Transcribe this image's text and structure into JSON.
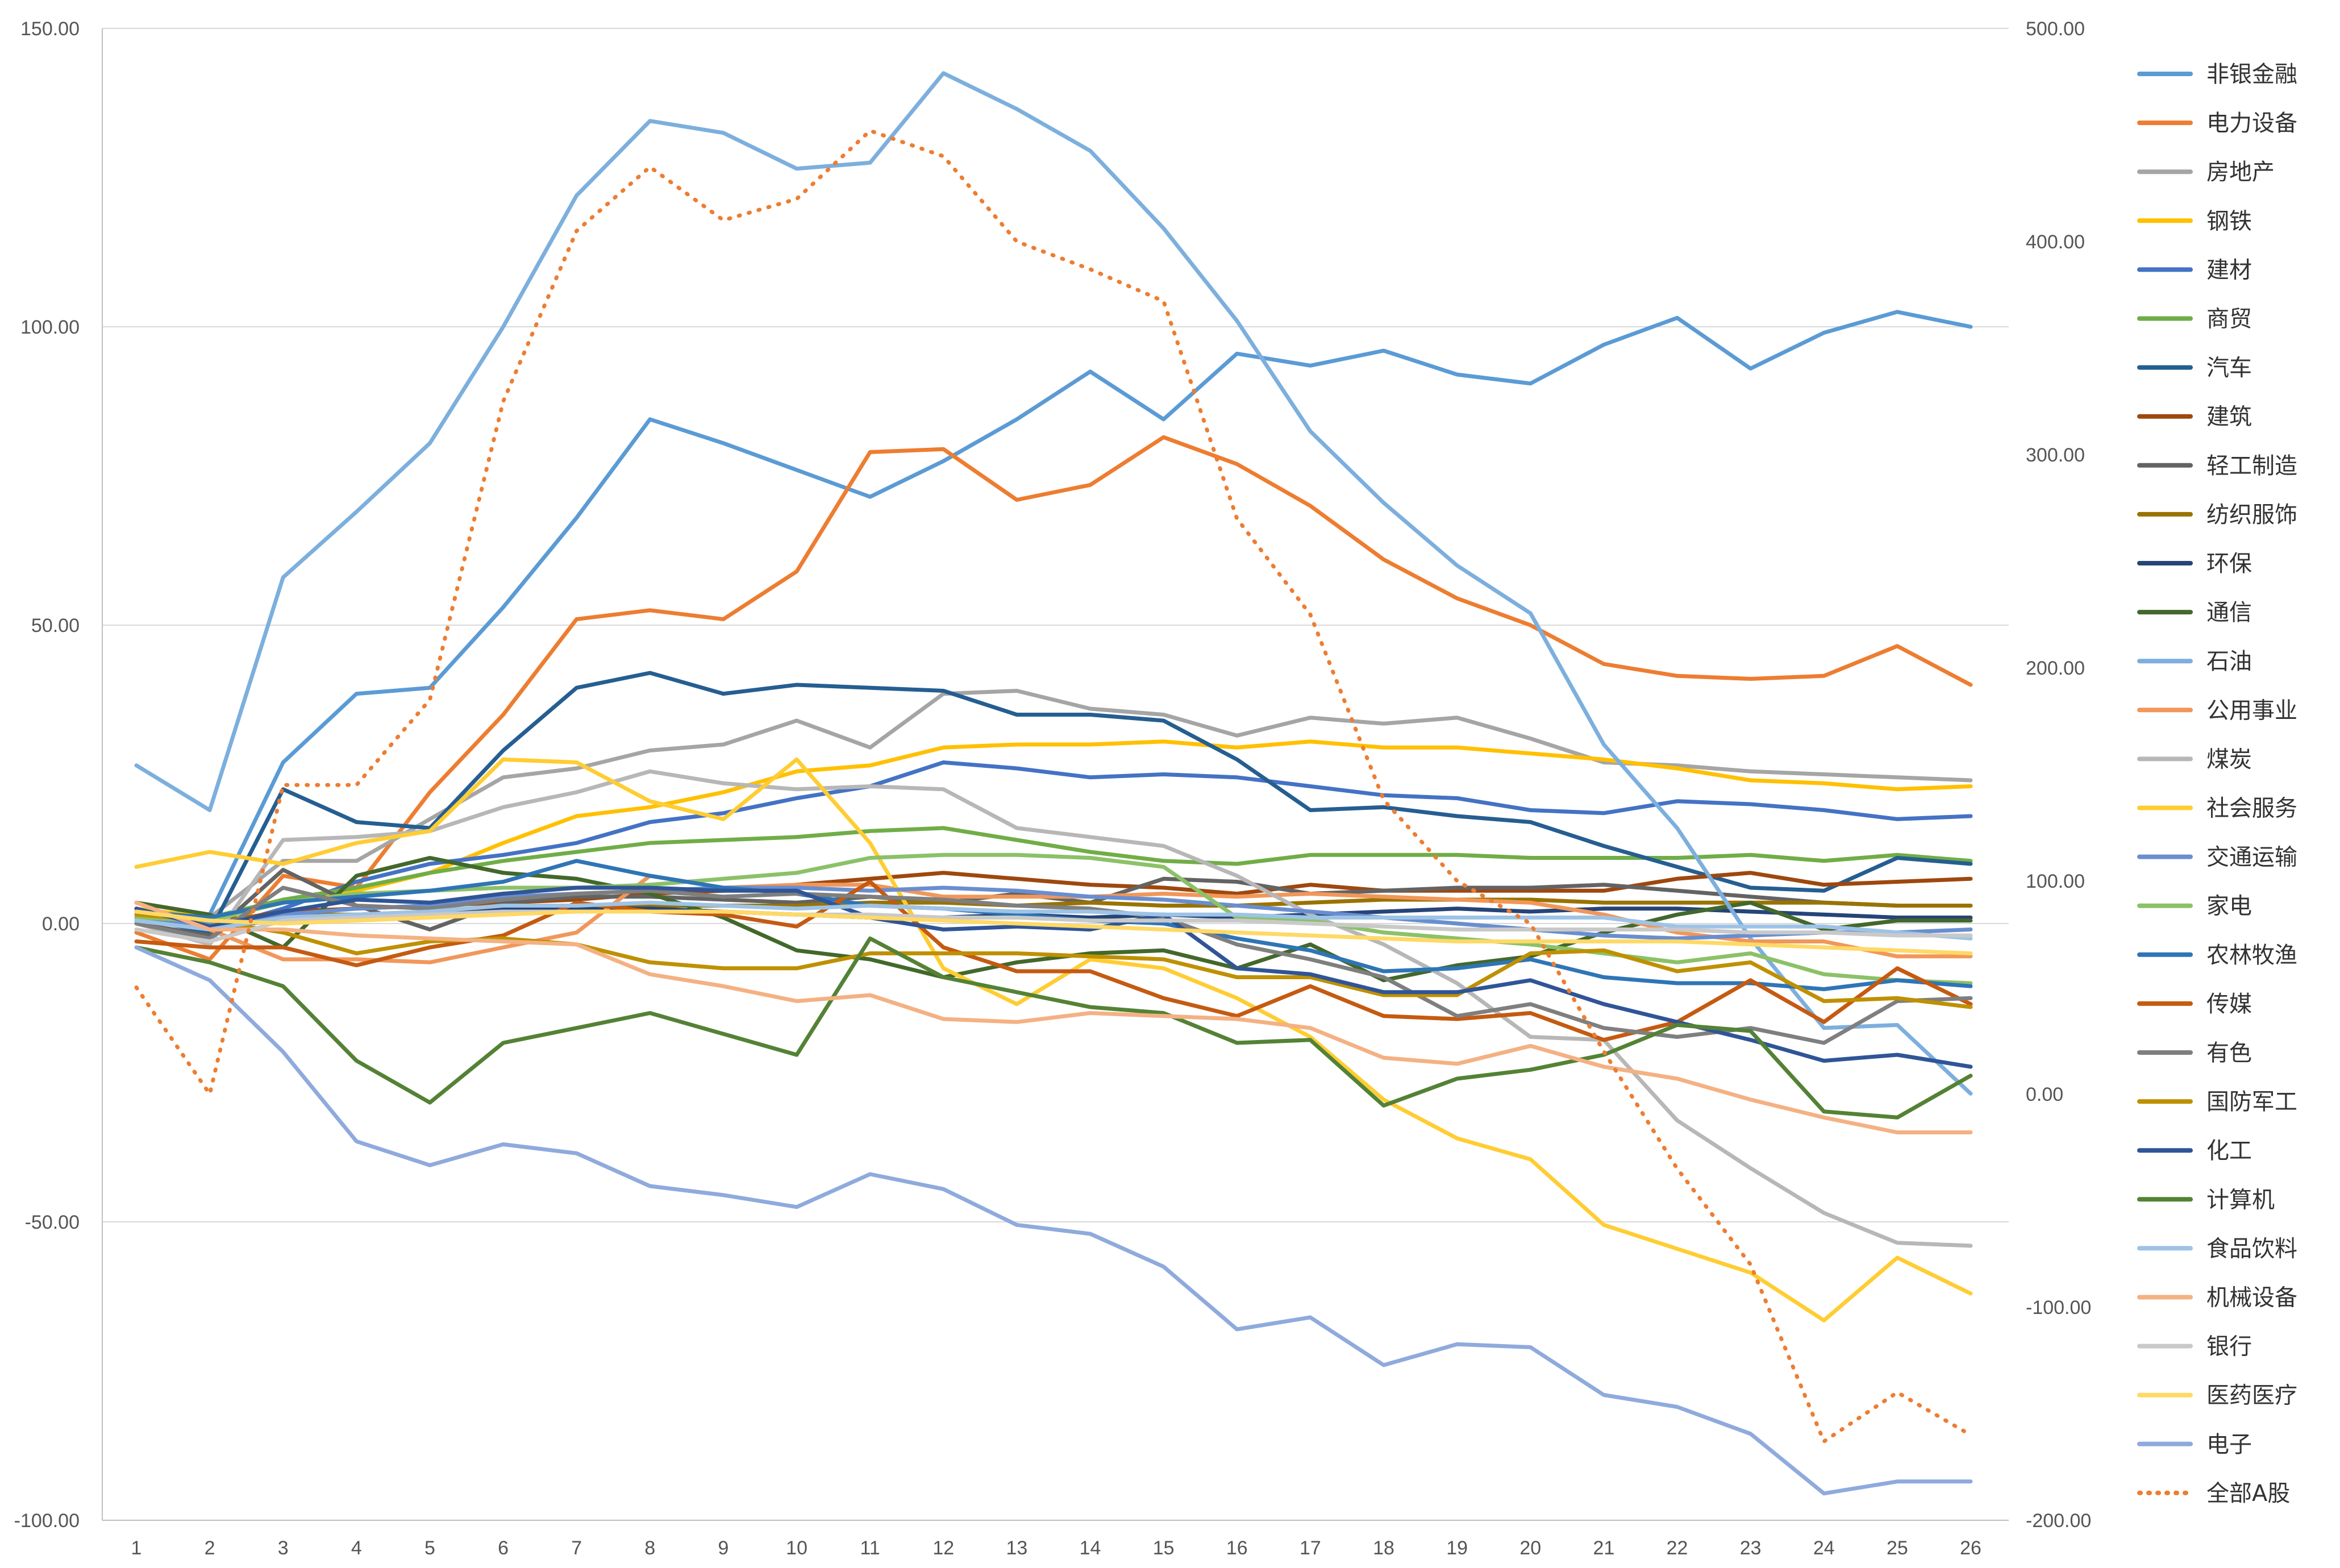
{
  "chart_data": {
    "type": "line",
    "title": "",
    "xlabel": "",
    "ylabel": "",
    "categories": [
      "1",
      "2",
      "3",
      "4",
      "5",
      "6",
      "7",
      "8",
      "9",
      "10",
      "11",
      "12",
      "13",
      "14",
      "15",
      "16",
      "17",
      "18",
      "19",
      "20",
      "21",
      "22",
      "23",
      "24",
      "25",
      "26"
    ],
    "ylim": [
      -100,
      150
    ],
    "y2lim": [
      -200,
      500
    ],
    "left_ticks": [
      "150.00",
      "100.00",
      "50.00",
      "0.00",
      "-50.00",
      "-100.00"
    ],
    "right_ticks": [
      "500.00",
      "400.00",
      "300.00",
      "200.00",
      "100.00",
      "0.00",
      "-100.00",
      "-200.00"
    ],
    "left_tick_values": [
      150,
      100,
      50,
      0,
      -50,
      -100
    ],
    "right_tick_values": [
      500,
      400,
      300,
      200,
      100,
      0,
      -100,
      -200
    ],
    "grid": true,
    "legend_position": "right",
    "series": [
      {
        "name": "非银金融",
        "color": "#5b9bd5",
        "axis": "left",
        "style": "solid",
        "values": [
          2.0,
          1.5,
          27.0,
          38.5,
          39.5,
          53.0,
          68.0,
          84.5,
          80.5,
          76.0,
          71.5,
          77.5,
          84.5,
          92.5,
          84.5,
          95.5,
          93.5,
          96.0,
          92.0,
          90.5,
          97.0,
          101.5,
          93.0,
          99.0,
          102.5,
          100.0
        ]
      },
      {
        "name": "电力设备",
        "color": "#ed7d31",
        "axis": "left",
        "style": "solid",
        "values": [
          -1.5,
          -6.0,
          8.0,
          6.0,
          22.0,
          35.0,
          51.0,
          52.5,
          51.0,
          59.0,
          79.0,
          79.5,
          71.0,
          73.5,
          81.5,
          77.0,
          70.0,
          61.0,
          54.5,
          50.0,
          43.5,
          41.5,
          41.0,
          41.5,
          46.5,
          40.0
        ]
      },
      {
        "name": "房地产",
        "color": "#a5a5a5",
        "axis": "left",
        "style": "solid",
        "values": [
          1.5,
          1.0,
          10.5,
          10.5,
          17.5,
          24.5,
          26.0,
          29.0,
          30.0,
          34.0,
          29.5,
          38.5,
          39.0,
          36.0,
          35.0,
          31.5,
          34.5,
          33.5,
          34.5,
          31.0,
          27.0,
          26.5,
          25.5,
          25.0,
          24.5,
          24.0
        ]
      },
      {
        "name": "钢铁",
        "color": "#ffc000",
        "axis": "left",
        "style": "solid",
        "values": [
          2.5,
          1.0,
          3.5,
          5.5,
          8.5,
          13.5,
          18.0,
          19.5,
          22.0,
          25.5,
          26.5,
          29.5,
          30.0,
          30.0,
          30.5,
          29.5,
          30.5,
          29.5,
          29.5,
          28.5,
          27.5,
          26.0,
          24.0,
          23.5,
          22.5,
          23.0
        ]
      },
      {
        "name": "建材",
        "color": "#4472c4",
        "axis": "left",
        "style": "solid",
        "values": [
          1.0,
          -1.0,
          2.5,
          7.0,
          10.0,
          11.5,
          13.5,
          17.0,
          18.5,
          21.0,
          23.0,
          27.0,
          26.0,
          24.5,
          25.0,
          24.5,
          23.0,
          21.5,
          21.0,
          19.0,
          18.5,
          20.5,
          20.0,
          19.0,
          17.5,
          18.0
        ]
      },
      {
        "name": "商贸",
        "color": "#70ad47",
        "axis": "left",
        "style": "solid",
        "values": [
          2.0,
          1.0,
          4.0,
          6.0,
          8.5,
          10.5,
          12.0,
          13.5,
          14.0,
          14.5,
          15.5,
          16.0,
          14.0,
          12.0,
          10.5,
          10.0,
          11.5,
          11.5,
          11.5,
          11.0,
          11.0,
          11.0,
          11.5,
          10.5,
          11.5,
          10.5
        ]
      },
      {
        "name": "汽车",
        "color": "#255e91",
        "axis": "left",
        "style": "solid",
        "values": [
          1.0,
          -1.5,
          22.5,
          17.0,
          16.0,
          29.0,
          39.5,
          42.0,
          38.5,
          40.0,
          39.5,
          39.0,
          35.0,
          35.0,
          34.0,
          27.5,
          19.0,
          19.5,
          18.0,
          17.0,
          13.0,
          9.5,
          6.0,
          5.5,
          11.0,
          10.0
        ]
      },
      {
        "name": "建筑",
        "color": "#9e480e",
        "axis": "left",
        "style": "solid",
        "values": [
          0.5,
          0.0,
          2.0,
          2.5,
          3.0,
          3.5,
          4.0,
          5.0,
          5.5,
          6.5,
          7.5,
          8.5,
          7.5,
          6.5,
          6.0,
          5.0,
          6.5,
          5.5,
          5.5,
          5.5,
          5.5,
          7.5,
          8.5,
          6.5,
          7.0,
          7.5
        ]
      },
      {
        "name": "轻工制造",
        "color": "#636363",
        "axis": "left",
        "style": "solid",
        "values": [
          0.0,
          -2.0,
          9.0,
          3.0,
          -1.0,
          3.5,
          4.5,
          4.5,
          4.0,
          3.5,
          4.5,
          3.5,
          5.0,
          3.5,
          7.5,
          7.0,
          5.0,
          5.5,
          6.0,
          6.0,
          6.5,
          5.5,
          4.5,
          3.5,
          3.0,
          3.0
        ]
      },
      {
        "name": "纺织服饰",
        "color": "#997300",
        "axis": "left",
        "style": "solid",
        "values": [
          1.0,
          0.5,
          1.5,
          1.5,
          2.0,
          2.0,
          2.5,
          3.0,
          3.0,
          3.0,
          3.5,
          3.5,
          3.0,
          3.5,
          3.0,
          3.0,
          3.5,
          4.0,
          4.0,
          4.0,
          3.5,
          3.5,
          3.5,
          3.5,
          3.0,
          3.0
        ]
      },
      {
        "name": "环保",
        "color": "#264478",
        "axis": "left",
        "style": "solid",
        "values": [
          1.0,
          -0.5,
          0.5,
          1.0,
          2.0,
          2.5,
          2.5,
          2.5,
          2.0,
          1.5,
          1.0,
          1.0,
          1.5,
          1.0,
          1.5,
          1.0,
          1.5,
          2.0,
          2.5,
          2.0,
          2.5,
          2.5,
          2.0,
          1.5,
          1.0,
          1.0
        ]
      },
      {
        "name": "通信",
        "color": "#43682b",
        "axis": "left",
        "style": "solid",
        "values": [
          3.5,
          1.5,
          -4.0,
          8.0,
          11.0,
          8.5,
          7.5,
          5.0,
          1.0,
          -4.5,
          -6.0,
          -9.0,
          -6.5,
          -5.0,
          -4.5,
          -7.5,
          -3.5,
          -9.5,
          -7.0,
          -5.5,
          -1.5,
          1.5,
          3.5,
          -1.0,
          0.5,
          0.5
        ]
      },
      {
        "name": "石油",
        "color": "#7cafdd",
        "axis": "left",
        "style": "solid",
        "values": [
          26.5,
          19.0,
          58.0,
          69.0,
          80.5,
          100.0,
          122.0,
          134.5,
          132.5,
          126.5,
          127.5,
          142.5,
          136.5,
          129.5,
          116.5,
          101.0,
          82.5,
          70.5,
          60.0,
          52.0,
          30.0,
          16.0,
          -2.5,
          -17.5,
          -17.0,
          -28.5
        ]
      },
      {
        "name": "公用事业",
        "color": "#f1975a",
        "axis": "left",
        "style": "solid",
        "values": [
          2.5,
          -1.0,
          -6.0,
          -6.0,
          -6.5,
          -4.0,
          -1.5,
          8.0,
          6.0,
          6.5,
          6.5,
          4.5,
          4.5,
          4.5,
          5.0,
          4.5,
          5.0,
          4.5,
          4.0,
          3.5,
          1.5,
          -1.5,
          -3.0,
          -3.0,
          -5.5,
          -5.5
        ]
      },
      {
        "name": "煤炭",
        "color": "#b7b7b7",
        "axis": "left",
        "style": "solid",
        "values": [
          0.0,
          -3.5,
          14.0,
          14.5,
          15.5,
          19.5,
          22.0,
          25.5,
          23.5,
          22.5,
          23.0,
          22.5,
          16.0,
          14.5,
          13.0,
          8.0,
          1.5,
          -3.5,
          -10.0,
          -19.0,
          -19.5,
          -33.0,
          -41.0,
          -48.5,
          -53.5,
          -54.0
        ]
      },
      {
        "name": "社会服务",
        "color": "#ffcd33",
        "axis": "left",
        "style": "solid",
        "values": [
          9.5,
          12.0,
          10.0,
          13.5,
          15.5,
          27.5,
          27.0,
          20.5,
          17.5,
          27.5,
          13.5,
          -7.5,
          -13.5,
          -6.0,
          -7.5,
          -12.5,
          -19.0,
          -29.5,
          -36.0,
          -39.5,
          -50.5,
          -54.5,
          -58.5,
          -66.5,
          -56.0,
          -62.0
        ]
      },
      {
        "name": "交通运输",
        "color": "#698ed0",
        "axis": "left",
        "style": "solid",
        "values": [
          0.5,
          0.0,
          1.5,
          2.5,
          3.0,
          4.5,
          5.0,
          5.5,
          6.0,
          6.0,
          5.5,
          6.0,
          5.5,
          4.5,
          4.0,
          3.0,
          2.0,
          1.0,
          0.0,
          -1.0,
          -2.0,
          -2.5,
          -2.0,
          -1.5,
          -1.5,
          -1.0
        ]
      },
      {
        "name": "家电",
        "color": "#8cc168",
        "axis": "left",
        "style": "solid",
        "values": [
          1.0,
          0.5,
          3.5,
          5.0,
          5.5,
          6.0,
          6.0,
          6.5,
          7.5,
          8.5,
          11.0,
          11.5,
          11.5,
          11.0,
          9.5,
          1.0,
          0.5,
          -1.5,
          -2.5,
          -3.5,
          -5.0,
          -6.5,
          -5.0,
          -8.5,
          -9.5,
          -10.0
        ]
      },
      {
        "name": "农林牧渔",
        "color": "#2e75b6",
        "axis": "left",
        "style": "solid",
        "values": [
          2.0,
          1.0,
          3.5,
          4.5,
          5.5,
          7.0,
          10.5,
          8.0,
          6.0,
          5.0,
          3.0,
          2.5,
          1.5,
          0.5,
          0.0,
          -2.5,
          -4.5,
          -8.0,
          -7.5,
          -6.0,
          -9.0,
          -10.0,
          -10.0,
          -11.0,
          -9.5,
          -10.5
        ]
      },
      {
        "name": "传媒",
        "color": "#c55a11",
        "axis": "left",
        "style": "solid",
        "values": [
          -3.0,
          -4.0,
          -4.0,
          -7.0,
          -4.0,
          -2.0,
          3.5,
          2.0,
          1.5,
          -0.5,
          7.0,
          -4.0,
          -8.0,
          -8.0,
          -12.5,
          -15.5,
          -10.5,
          -15.5,
          -16.0,
          -15.0,
          -19.5,
          -16.5,
          -9.5,
          -16.5,
          -7.5,
          -13.5
        ]
      },
      {
        "name": "有色",
        "color": "#7f7f7f",
        "axis": "left",
        "style": "solid",
        "values": [
          0.0,
          -2.5,
          6.0,
          3.0,
          2.5,
          4.0,
          5.0,
          5.5,
          4.5,
          5.0,
          4.5,
          4.0,
          3.0,
          2.5,
          1.0,
          -3.5,
          -6.0,
          -9.0,
          -15.5,
          -13.5,
          -17.5,
          -19.0,
          -17.5,
          -20.0,
          -13.0,
          -12.5
        ]
      },
      {
        "name": "国防军工",
        "color": "#bf9000",
        "axis": "left",
        "style": "solid",
        "values": [
          1.5,
          0.5,
          -1.5,
          -5.0,
          -3.0,
          -2.5,
          -3.5,
          -6.5,
          -7.5,
          -7.5,
          -5.0,
          -5.0,
          -5.0,
          -5.5,
          -6.0,
          -9.0,
          -9.0,
          -12.0,
          -12.0,
          -5.0,
          -4.5,
          -8.0,
          -6.5,
          -13.0,
          -12.5,
          -14.0
        ]
      },
      {
        "name": "化工",
        "color": "#2f5597",
        "axis": "left",
        "style": "solid",
        "values": [
          2.5,
          -0.5,
          2.0,
          4.0,
          3.5,
          5.0,
          6.0,
          6.0,
          5.5,
          5.5,
          1.0,
          -1.0,
          -0.5,
          -1.0,
          1.5,
          -7.5,
          -8.5,
          -11.5,
          -11.5,
          -9.5,
          -13.5,
          -16.5,
          -19.5,
          -23.0,
          -22.0,
          -24.0
        ]
      },
      {
        "name": "计算机",
        "color": "#548235",
        "axis": "left",
        "style": "solid",
        "values": [
          -4.0,
          -6.5,
          -10.5,
          -23.0,
          -30.0,
          -20.0,
          -17.5,
          -15.0,
          -18.5,
          -22.0,
          -2.5,
          -9.0,
          -11.5,
          -14.0,
          -15.0,
          -20.0,
          -19.5,
          -30.5,
          -26.0,
          -24.5,
          -22.0,
          -17.0,
          -18.0,
          -31.5,
          -32.5,
          -25.5
        ]
      },
      {
        "name": "食品饮料",
        "color": "#9dc3e6",
        "axis": "left",
        "style": "solid",
        "values": [
          0.5,
          -1.0,
          1.0,
          1.5,
          2.0,
          3.0,
          3.0,
          3.5,
          3.0,
          2.5,
          3.0,
          2.5,
          2.0,
          2.0,
          1.5,
          1.5,
          1.0,
          1.0,
          1.0,
          1.0,
          1.0,
          -0.5,
          -0.5,
          -0.5,
          -1.5,
          -2.5
        ]
      },
      {
        "name": "机械设备",
        "color": "#f4b183",
        "axis": "left",
        "style": "solid",
        "values": [
          3.5,
          -1.0,
          -1.0,
          -2.0,
          -2.5,
          -3.0,
          -3.5,
          -8.5,
          -10.5,
          -13.0,
          -12.0,
          -16.0,
          -16.5,
          -15.0,
          -15.5,
          -16.0,
          -17.5,
          -22.5,
          -23.5,
          -20.5,
          -24.0,
          -26.0,
          -29.5,
          -32.5,
          -35.0,
          -35.0
        ]
      },
      {
        "name": "银行",
        "color": "#c9c9c9",
        "axis": "left",
        "style": "solid",
        "values": [
          -1.0,
          -3.0,
          0.5,
          1.0,
          1.5,
          2.0,
          2.0,
          2.0,
          2.0,
          1.5,
          1.5,
          1.0,
          1.0,
          0.5,
          0.5,
          0.5,
          0.0,
          -0.5,
          -1.0,
          -1.0,
          -1.0,
          -1.0,
          -1.5,
          -1.5,
          -2.0,
          -2.0
        ]
      },
      {
        "name": "医药医疗",
        "color": "#ffd966",
        "axis": "left",
        "style": "solid",
        "values": [
          2.0,
          0.5,
          0.0,
          0.5,
          1.0,
          1.5,
          2.0,
          2.0,
          2.0,
          1.5,
          1.0,
          0.5,
          0.0,
          -0.5,
          -1.0,
          -1.5,
          -2.0,
          -2.5,
          -3.0,
          -3.0,
          -3.0,
          -3.0,
          -3.5,
          -4.0,
          -4.5,
          -5.0
        ]
      },
      {
        "name": "电子",
        "color": "#8faadc",
        "axis": "left",
        "style": "solid",
        "values": [
          -4.0,
          -9.5,
          -21.5,
          -36.5,
          -40.5,
          -37.0,
          -38.5,
          -44.0,
          -45.5,
          -47.5,
          -42.0,
          -44.5,
          -50.5,
          -52.0,
          -57.5,
          -68.0,
          -66.0,
          -74.0,
          -70.5,
          -71.0,
          -79.0,
          -81.0,
          -85.5,
          -95.5,
          -93.5,
          -93.5
        ]
      },
      {
        "name": "全部A股",
        "color": "#ed7d31",
        "axis": "right",
        "style": "dotted",
        "values": [
          50.0,
          0.0,
          145.0,
          145.0,
          185.0,
          325.0,
          405.0,
          435.0,
          410.0,
          420.0,
          452.0,
          440.0,
          400.0,
          387.0,
          372.0,
          270.0,
          225.0,
          138.0,
          100.0,
          80.0,
          20.0,
          -35.0,
          -80.0,
          -163.0,
          -140.0,
          -160.0
        ]
      }
    ]
  }
}
